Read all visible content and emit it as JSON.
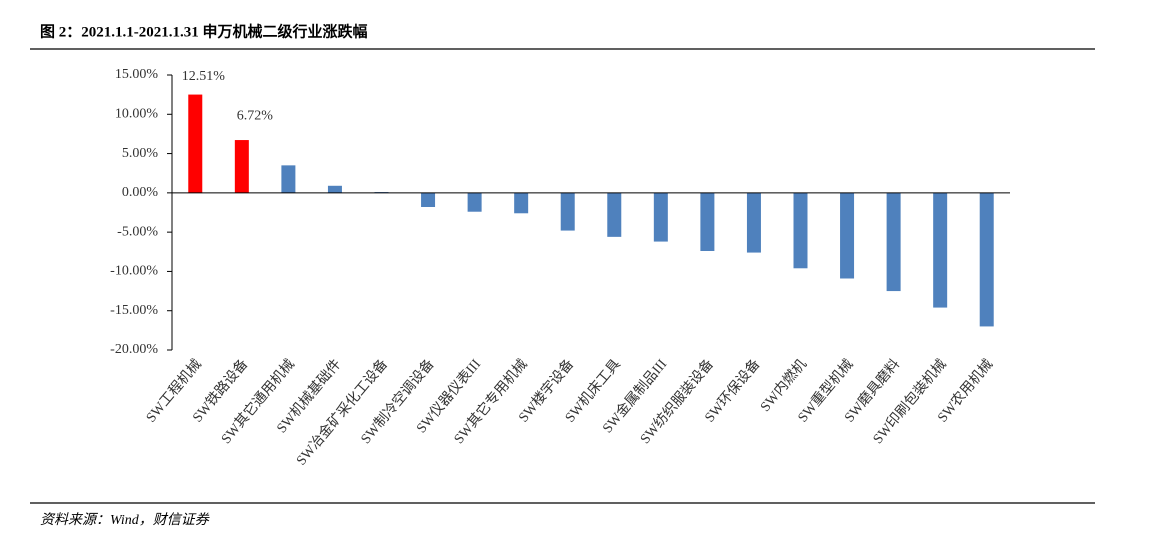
{
  "chart_data": {
    "type": "bar",
    "title": "图 2：2021.1.1-2021.1.31 申万机械二级行业涨跌幅",
    "source": "资料来源：Wind，财信证券",
    "categories": [
      "SW工程机械",
      "SW铁路设备",
      "SW其它通用机械",
      "SW机械基础件",
      "SW冶金矿采化工设备",
      "SW制冷空调设备",
      "SW仪器仪表III",
      "SW其它专用机械",
      "SW楼宇设备",
      "SW机床工具",
      "SW金属制品III",
      "SW纺织服装设备",
      "SW环保设备",
      "SW内燃机",
      "SW重型机械",
      "SW磨具磨料",
      "SW印刷包装机械",
      "SW农用机械"
    ],
    "values": [
      12.51,
      6.72,
      3.5,
      0.9,
      0.1,
      -1.8,
      -2.4,
      -2.6,
      -4.8,
      -5.6,
      -6.2,
      -7.4,
      -7.6,
      -9.6,
      -10.9,
      -12.5,
      -14.6,
      -17.0
    ],
    "value_labels": [
      "12.51%",
      "6.72%",
      null,
      null,
      null,
      null,
      null,
      null,
      null,
      null,
      null,
      null,
      null,
      null,
      null,
      null,
      null,
      null
    ],
    "colors": [
      "#ff0000",
      "#ff0000",
      "#4f81bd",
      "#4f81bd",
      "#4f81bd",
      "#4f81bd",
      "#4f81bd",
      "#4f81bd",
      "#4f81bd",
      "#4f81bd",
      "#4f81bd",
      "#4f81bd",
      "#4f81bd",
      "#4f81bd",
      "#4f81bd",
      "#4f81bd",
      "#4f81bd",
      "#4f81bd"
    ],
    "ylim": [
      -20,
      15
    ],
    "yticks": [
      {
        "value": 15,
        "label": "15.00%"
      },
      {
        "value": 10,
        "label": "10.00%"
      },
      {
        "value": 5,
        "label": "5.00%"
      },
      {
        "value": 0,
        "label": "0.00%"
      },
      {
        "value": -5,
        "label": "-5.00%"
      },
      {
        "value": -10,
        "label": "-10.00%"
      },
      {
        "value": -15,
        "label": "-15.00%"
      },
      {
        "value": -20,
        "label": "-20.00%"
      }
    ],
    "grid": false
  }
}
